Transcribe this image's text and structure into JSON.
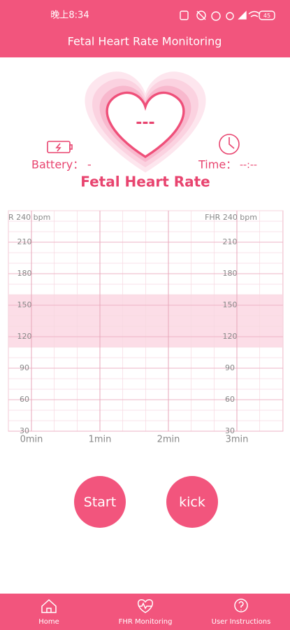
{
  "status_bar": {
    "time": "晚上8:34",
    "battery": "45"
  },
  "header": {
    "title": "Fetal Heart Rate Monitoring"
  },
  "heart": {
    "reading": "---"
  },
  "battery": {
    "label": "Battery：",
    "value": "-"
  },
  "time": {
    "label": "Time：",
    "value": "--:--"
  },
  "section_title": "Fetal Heart Rate",
  "monitor": {
    "left_axis_title": "R 240 bpm",
    "right_axis_title": "FHR 240 bpm",
    "ylim": [
      30,
      240
    ],
    "yticks": [
      30,
      60,
      90,
      120,
      150,
      180,
      210
    ],
    "xticks": [
      {
        "value": 0,
        "label": "0min"
      },
      {
        "value": 1,
        "label": "1min"
      },
      {
        "value": 2,
        "label": "2min"
      },
      {
        "value": 3,
        "label": "3min"
      }
    ],
    "normal_range": [
      110,
      160
    ]
  },
  "buttons": [
    "Start",
    "kick"
  ],
  "nav": [
    "Home",
    "FHR Monitoring",
    "User Instructions"
  ]
}
